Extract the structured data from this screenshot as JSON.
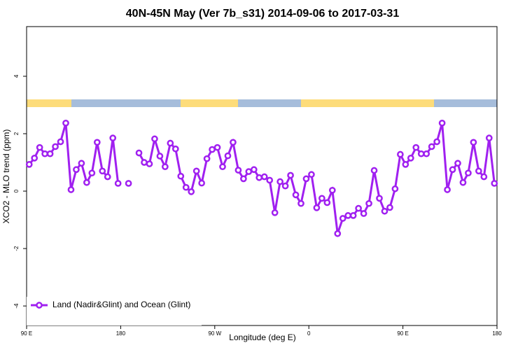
{
  "chart_data": {
    "type": "line",
    "title": "40N-45N May (Ver 7b_s31)   2014-09-06 to 2017-03-31",
    "x_label": "Longitude (deg E)",
    "y_label": "XCO2 - MLO trend (ppm)",
    "x": [
      92.5,
      97.5,
      102.5,
      107.5,
      112.5,
      117.5,
      122.5,
      127.5,
      132.5,
      137.5,
      142.5,
      147.5,
      152.5,
      157.5,
      162.5,
      167.5,
      172.5,
      177.5,
      182.5,
      187.5,
      192.5,
      197.5,
      202.5,
      207.5,
      212.5,
      217.5,
      222.5,
      227.5,
      232.5,
      237.5,
      242.5,
      247.5,
      252.5,
      257.5,
      262.5,
      267.5,
      272.5,
      277.5,
      282.5,
      287.5,
      292.5,
      297.5,
      302.5,
      307.5,
      312.5,
      317.5,
      322.5,
      327.5,
      332.5,
      337.5,
      342.5,
      347.5,
      352.5,
      357.5,
      362.5,
      367.5,
      372.5,
      377.5,
      382.5,
      387.5,
      392.5,
      397.5,
      402.5,
      407.5,
      412.5,
      417.5,
      422.5,
      427.5,
      432.5,
      437.5,
      442.5,
      447.5,
      452.5,
      457.5,
      462.5,
      467.5,
      472.5,
      477.5,
      482.5,
      487.5,
      492.5,
      497.5,
      502.5,
      507.5,
      512.5,
      517.5,
      522.5,
      527.5,
      532.5,
      537.5
    ],
    "series": [
      {
        "name": "Land (Nadir&Glint) and Ocean (Glint)",
        "color": "#a020f0",
        "values": [
          0.93,
          1.15,
          1.52,
          1.3,
          1.3,
          1.55,
          1.72,
          2.37,
          0.05,
          0.75,
          0.97,
          0.3,
          0.63,
          1.7,
          0.7,
          0.5,
          1.85,
          0.27,
          null,
          0.27,
          null,
          1.33,
          1.0,
          0.95,
          1.82,
          1.22,
          0.85,
          1.67,
          1.47,
          0.52,
          0.13,
          -0.02,
          0.7,
          0.28,
          1.13,
          1.45,
          1.52,
          0.85,
          1.23,
          1.7,
          0.73,
          0.43,
          0.68,
          0.75,
          0.47,
          0.5,
          0.38,
          -0.75,
          0.33,
          0.18,
          0.55,
          -0.13,
          -0.43,
          0.43,
          0.58,
          -0.58,
          -0.25,
          -0.4,
          0.03,
          -1.48,
          -0.95,
          -0.85,
          -0.85,
          -0.6,
          -0.78,
          -0.43,
          0.72,
          -0.25,
          -0.7,
          -0.57,
          0.08,
          1.28,
          0.93,
          1.15,
          1.52,
          1.3,
          1.3,
          1.55,
          1.72,
          2.37,
          0.05,
          0.75,
          0.97,
          0.3,
          0.63,
          1.7,
          0.7,
          0.5,
          1.85,
          0.27
        ]
      }
    ],
    "xlim": [
      90,
      540
    ],
    "xticks": [
      {
        "value": 90,
        "label": "90 E"
      },
      180,
      {
        "value": 270,
        "label": "90 W"
      },
      {
        "value": 360,
        "label": "0"
      },
      {
        "value": 450,
        "label": "90 E"
      },
      {
        "value": 540,
        "label": "180"
      }
    ],
    "ylim": [
      -4.68,
      5.73
    ],
    "yticks": [
      -4,
      -2,
      0,
      2,
      4
    ],
    "legend": "bottom-left"
  }
}
